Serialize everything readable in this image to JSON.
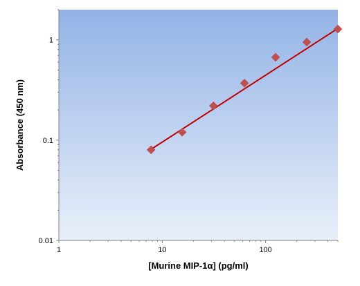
{
  "chart_data": {
    "type": "scatter",
    "title": "",
    "xlabel": "[Murine MIP-1α] (pg/ml)",
    "ylabel": "Absorbance (450 nm)",
    "xscale": "log",
    "yscale": "log",
    "xlim": [
      1,
      500
    ],
    "ylim": [
      0.01,
      2
    ],
    "x_ticks": [
      {
        "value": 1,
        "label": "1"
      },
      {
        "value": 10,
        "label": "10"
      },
      {
        "value": 100,
        "label": "100"
      }
    ],
    "y_ticks": [
      {
        "value": 0.01,
        "label": "0.01"
      },
      {
        "value": 0.1,
        "label": "0.1"
      },
      {
        "value": 1,
        "label": "1"
      }
    ],
    "grid": false,
    "legend": "none",
    "series": [
      {
        "type": "scatter",
        "marker": "diamond",
        "color": "#c0504d",
        "x": [
          7.8,
          15.6,
          31.3,
          62.5,
          125,
          250,
          500
        ],
        "y": [
          0.08,
          0.12,
          0.22,
          0.37,
          0.67,
          0.95,
          1.28
        ]
      },
      {
        "type": "line",
        "color": "#c00000",
        "x": [
          7.8,
          500
        ],
        "y": [
          0.081,
          1.3
        ]
      }
    ],
    "colors": {
      "background_top": "#93b3e6",
      "background_bottom": "#e9effa",
      "marker": "#c0504d",
      "fit_line": "#c00000"
    }
  }
}
